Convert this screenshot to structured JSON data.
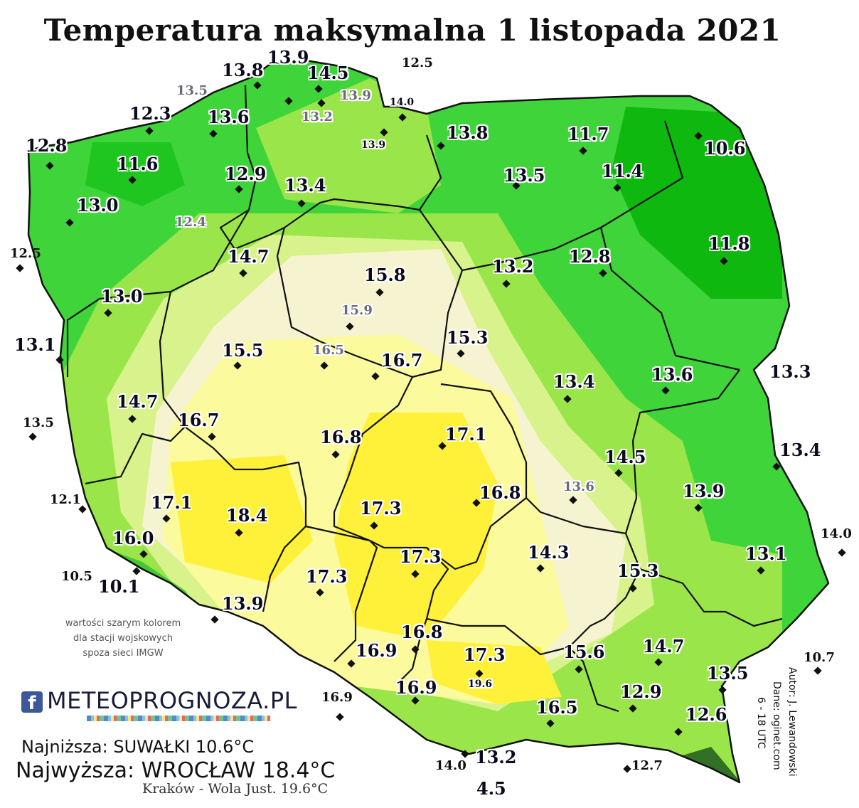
{
  "title": "Temperatura maksymalna 1 listopada 2021",
  "colors": {
    "coldest": "#0fb80f",
    "cold": "#3ed43a",
    "mid": "#9ae64a",
    "light": "#d8f28c",
    "cream": "#f6f4d0",
    "pale_yellow": "#fbfa9c",
    "yellow": "#fff03a",
    "mountain": "#1e5a1e"
  },
  "stations": [
    {
      "label": "13.9",
      "kind": "main"
    },
    {
      "label": "13.8",
      "kind": "main"
    },
    {
      "label": "14.5",
      "kind": "main"
    },
    {
      "label": "12.5",
      "kind": "outside"
    },
    {
      "label": "13.5",
      "kind": "military"
    },
    {
      "label": "13.9",
      "kind": "military"
    },
    {
      "label": "14.0",
      "kind": "small"
    },
    {
      "label": "13.2",
      "kind": "military"
    },
    {
      "label": "12.3",
      "kind": "main"
    },
    {
      "label": "13.6",
      "kind": "main"
    },
    {
      "label": "13.9",
      "kind": "small"
    },
    {
      "label": "12.8",
      "kind": "main"
    },
    {
      "label": "13.8",
      "kind": "main"
    },
    {
      "label": "11.7",
      "kind": "main"
    },
    {
      "label": "10.6",
      "kind": "main"
    },
    {
      "label": "11.6",
      "kind": "main"
    },
    {
      "label": "12.9",
      "kind": "main"
    },
    {
      "label": "13.5",
      "kind": "main"
    },
    {
      "label": "11.4",
      "kind": "main"
    },
    {
      "label": "13.4",
      "kind": "main"
    },
    {
      "label": "13.0",
      "kind": "main"
    },
    {
      "label": "12.4",
      "kind": "military"
    },
    {
      "label": "11.8",
      "kind": "main"
    },
    {
      "label": "12.5",
      "kind": "outside"
    },
    {
      "label": "14.7",
      "kind": "main"
    },
    {
      "label": "12.8",
      "kind": "main"
    },
    {
      "label": "13.2",
      "kind": "main"
    },
    {
      "label": "15.8",
      "kind": "main"
    },
    {
      "label": "13.0",
      "kind": "main"
    },
    {
      "label": "15.9",
      "kind": "military"
    },
    {
      "label": "13.1",
      "kind": "main"
    },
    {
      "label": "15.3",
      "kind": "main"
    },
    {
      "label": "15.5",
      "kind": "main"
    },
    {
      "label": "16.5",
      "kind": "military"
    },
    {
      "label": "16.7",
      "kind": "main"
    },
    {
      "label": "13.3",
      "kind": "main"
    },
    {
      "label": "13.6",
      "kind": "main"
    },
    {
      "label": "13.4",
      "kind": "main"
    },
    {
      "label": "14.7",
      "kind": "main"
    },
    {
      "label": "13.5",
      "kind": "outside"
    },
    {
      "label": "16.7",
      "kind": "main"
    },
    {
      "label": "16.8",
      "kind": "main"
    },
    {
      "label": "17.1",
      "kind": "main"
    },
    {
      "label": "13.4",
      "kind": "main"
    },
    {
      "label": "14.5",
      "kind": "main"
    },
    {
      "label": "13.6",
      "kind": "military"
    },
    {
      "label": "13.9",
      "kind": "main"
    },
    {
      "label": "17.1",
      "kind": "main"
    },
    {
      "label": "12.1",
      "kind": "outside"
    },
    {
      "label": "16.8",
      "kind": "main"
    },
    {
      "label": "18.4",
      "kind": "main"
    },
    {
      "label": "17.3",
      "kind": "main"
    },
    {
      "label": "16.0",
      "kind": "main"
    },
    {
      "label": "14.0",
      "kind": "outside"
    },
    {
      "label": "14.3",
      "kind": "main"
    },
    {
      "label": "17.3",
      "kind": "main"
    },
    {
      "label": "13.1",
      "kind": "main"
    },
    {
      "label": "10.5",
      "kind": "outside"
    },
    {
      "label": "10.1",
      "kind": "main"
    },
    {
      "label": "17.3",
      "kind": "main"
    },
    {
      "label": "15.3",
      "kind": "main"
    },
    {
      "label": "13.9",
      "kind": "main"
    },
    {
      "label": "16.8",
      "kind": "main"
    },
    {
      "label": "16.9",
      "kind": "main"
    },
    {
      "label": "17.3",
      "kind": "main"
    },
    {
      "label": "15.6",
      "kind": "main"
    },
    {
      "label": "14.7",
      "kind": "main"
    },
    {
      "label": "10.7",
      "kind": "outside"
    },
    {
      "label": "19.6",
      "kind": "small"
    },
    {
      "label": "13.5",
      "kind": "main"
    },
    {
      "label": "16.9",
      "kind": "outside"
    },
    {
      "label": "16.9",
      "kind": "main"
    },
    {
      "label": "12.9",
      "kind": "main"
    },
    {
      "label": "16.5",
      "kind": "main"
    },
    {
      "label": "12.6",
      "kind": "main"
    },
    {
      "label": "13.2",
      "kind": "main"
    },
    {
      "label": "14.0",
      "kind": "outside"
    },
    {
      "label": "12.7",
      "kind": "outside"
    },
    {
      "label": "4.5",
      "kind": "main"
    }
  ],
  "note": "wartości szarym kolorem dla stacji wojskowych spoza sieci IMGW",
  "logo": {
    "fb": "f",
    "text": "METEOPROGNOZA.PL"
  },
  "stats": {
    "min": "Najniższa: SUWAŁKI 10.6°C",
    "max": "Najwyższa: WROCŁAW 18.4°C",
    "extra": "Kraków - Wola Just. 19.6°C"
  },
  "credits": {
    "author": "Autor: J. Lewandowski",
    "data": "Dane: oginet.com",
    "hours": "6 - 18 UTC"
  }
}
